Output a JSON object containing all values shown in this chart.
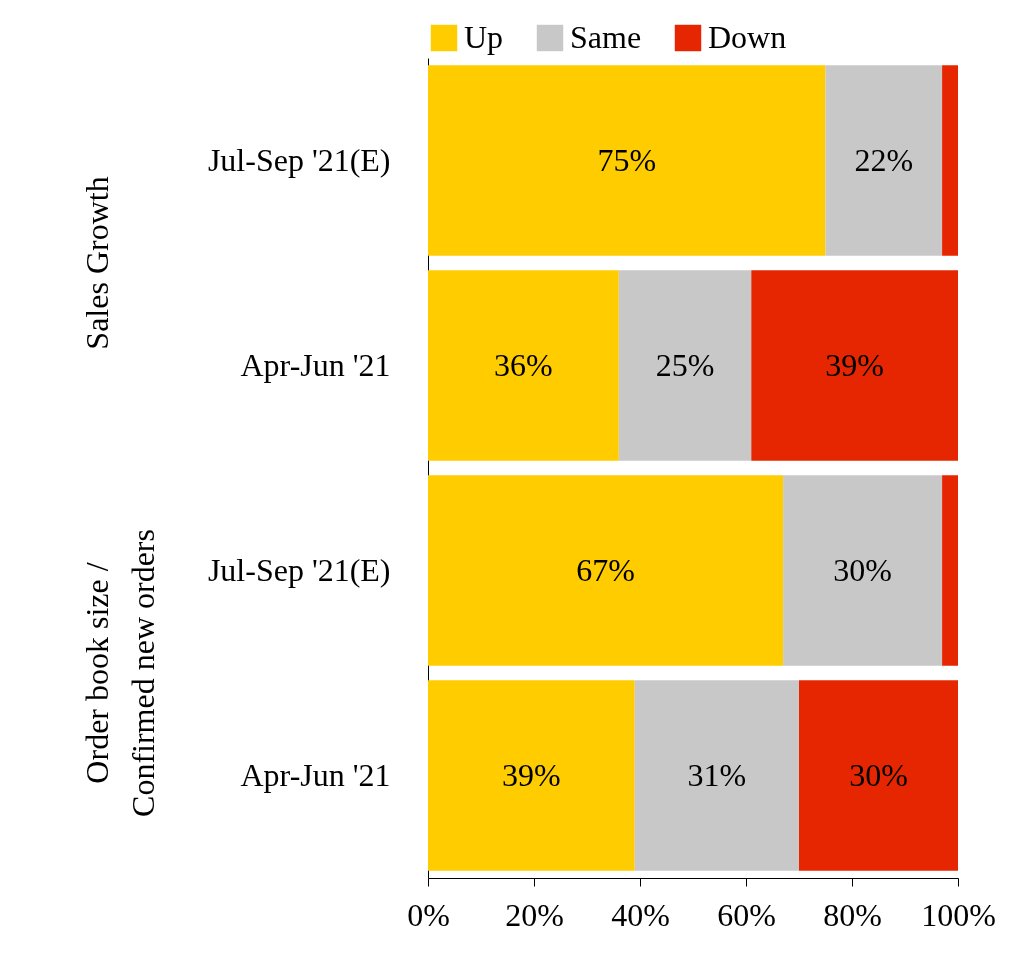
{
  "chart_data": {
    "type": "bar",
    "orientation": "horizontal",
    "stacked": true,
    "categories": [
      "Jul-Sep '21(E)",
      "Apr-Jun '21",
      "Jul-Sep '21(E)",
      "Apr-Jun '21"
    ],
    "series": [
      {
        "name": "Up",
        "color": "#ffcc00",
        "values": [
          75,
          36,
          67,
          39
        ],
        "value_labels": [
          "75%",
          "36%",
          "67%",
          "39%"
        ]
      },
      {
        "name": "Same",
        "color": "#c8c8c8",
        "values": [
          22,
          25,
          30,
          31
        ],
        "value_labels": [
          "22%",
          "25%",
          "30%",
          "31%"
        ]
      },
      {
        "name": "Down",
        "color": "#e52600",
        "values": [
          3,
          39,
          3,
          30
        ],
        "value_labels": [
          null,
          "39%",
          null,
          "30%"
        ]
      }
    ],
    "xlim": [
      0,
      100
    ],
    "xticks": [
      {
        "value": 0,
        "label": "0%"
      },
      {
        "value": 20,
        "label": "20%"
      },
      {
        "value": 40,
        "label": "40%"
      },
      {
        "value": 60,
        "label": "60%"
      },
      {
        "value": 80,
        "label": "80%"
      },
      {
        "value": 100,
        "label": "100%"
      }
    ],
    "annotations": [
      "Sales Growth",
      "Order book size /\nConfirmed new orders"
    ],
    "legend": "top",
    "grid": false
  }
}
